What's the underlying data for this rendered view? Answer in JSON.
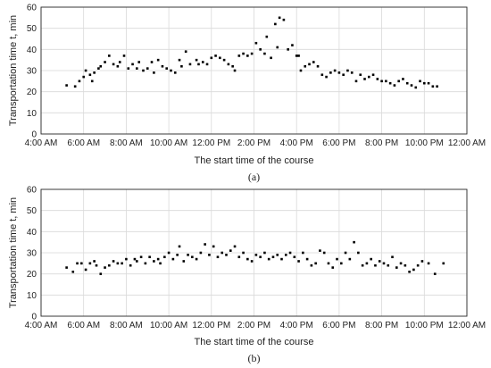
{
  "chart_data": [
    {
      "type": "scatter",
      "caption": "(a)",
      "xlabel": "The start time of the course",
      "ylabel": "Transportation time t, min",
      "xlim": [
        4,
        24
      ],
      "ylim": [
        0,
        60
      ],
      "x_ticks": [
        4,
        6,
        8,
        10,
        12,
        14,
        16,
        18,
        20,
        22,
        24
      ],
      "x_tick_labels": [
        "4:00 AM",
        "6:00 AM",
        "8:00 AM",
        "10:00 AM",
        "12:00 PM",
        "2:00 PM",
        "4:00 PM",
        "6:00 PM",
        "8:00 PM",
        "10:00 PM",
        "12:00 AM"
      ],
      "y_ticks": [
        0,
        10,
        20,
        30,
        40,
        50,
        60
      ],
      "grid": true,
      "x": [
        5.2,
        5.6,
        5.8,
        6.0,
        6.1,
        6.3,
        6.4,
        6.5,
        6.7,
        6.8,
        7.0,
        7.2,
        7.4,
        7.6,
        7.7,
        7.9,
        8.1,
        8.3,
        8.5,
        8.6,
        8.8,
        9.0,
        9.2,
        9.3,
        9.5,
        9.7,
        9.9,
        10.1,
        10.3,
        10.5,
        10.6,
        10.8,
        11.0,
        11.3,
        11.4,
        11.6,
        11.8,
        12.0,
        12.2,
        12.4,
        12.6,
        12.8,
        13.0,
        13.1,
        13.3,
        13.5,
        13.7,
        13.9,
        14.1,
        14.3,
        14.5,
        14.6,
        14.8,
        15.0,
        15.2,
        15.4,
        15.6,
        15.8,
        16.0,
        16.2,
        16.4,
        16.6,
        16.8,
        17.0,
        17.2,
        17.4,
        17.6,
        17.8,
        18.0,
        18.2,
        18.4,
        18.6,
        18.8,
        19.0,
        19.2,
        19.4,
        19.6,
        19.8,
        20.0,
        20.2,
        20.4,
        20.6,
        20.8,
        21.0,
        21.2,
        21.4,
        21.6,
        21.8,
        22.0,
        22.2,
        22.4,
        22.6,
        15.1,
        16.1
      ],
      "y": [
        23,
        22.5,
        25,
        27,
        30,
        28,
        25,
        29,
        31,
        32,
        34,
        37,
        33,
        32,
        34,
        37,
        31,
        33,
        31,
        34,
        30,
        31,
        34,
        29,
        35,
        32,
        31,
        30,
        29,
        35,
        32,
        39,
        33,
        35,
        33,
        34,
        33,
        36,
        37,
        36,
        35,
        33,
        32,
        30,
        37,
        38,
        37,
        38,
        43,
        40,
        38,
        46,
        36,
        52,
        55,
        54,
        40,
        42,
        37,
        30,
        32,
        33,
        34,
        32,
        28,
        27,
        29,
        30,
        29,
        28,
        30,
        29,
        25,
        28,
        26,
        27,
        28,
        26,
        25,
        25,
        24,
        23,
        25,
        26,
        24,
        23,
        22,
        25,
        24,
        24,
        22.5,
        22.5,
        41,
        37
      ]
    },
    {
      "type": "scatter",
      "caption": "(b)",
      "xlabel": "The start time of the course",
      "ylabel": "Transportation time t, min",
      "xlim": [
        4,
        24
      ],
      "ylim": [
        0,
        60
      ],
      "x_ticks": [
        4,
        6,
        8,
        10,
        12,
        14,
        16,
        18,
        20,
        22,
        24
      ],
      "x_tick_labels": [
        "4:00 AM",
        "6:00 AM",
        "8:00 AM",
        "10:00 AM",
        "12:00 PM",
        "2:00 PM",
        "4:00 PM",
        "6:00 PM",
        "8:00 PM",
        "10:00 PM",
        "12:00 AM"
      ],
      "y_ticks": [
        0,
        10,
        20,
        30,
        40,
        50,
        60
      ],
      "grid": true,
      "x": [
        5.2,
        5.5,
        5.7,
        5.9,
        6.1,
        6.3,
        6.5,
        6.6,
        6.8,
        7.0,
        7.2,
        7.4,
        7.6,
        7.8,
        8.0,
        8.2,
        8.4,
        8.5,
        8.7,
        8.9,
        9.1,
        9.3,
        9.5,
        9.6,
        9.8,
        10.0,
        10.2,
        10.4,
        10.5,
        10.7,
        10.9,
        11.1,
        11.3,
        11.5,
        11.7,
        11.9,
        12.1,
        12.3,
        12.5,
        12.7,
        12.9,
        13.1,
        13.3,
        13.5,
        13.7,
        13.9,
        14.1,
        14.3,
        14.5,
        14.7,
        14.9,
        15.1,
        15.3,
        15.5,
        15.7,
        15.9,
        16.1,
        16.3,
        16.5,
        16.7,
        16.9,
        17.1,
        17.3,
        17.5,
        17.7,
        17.9,
        18.1,
        18.3,
        18.5,
        18.7,
        18.9,
        19.1,
        19.3,
        19.5,
        19.7,
        19.9,
        20.1,
        20.3,
        20.5,
        20.7,
        20.9,
        21.1,
        21.3,
        21.5,
        21.7,
        21.9,
        22.2,
        22.5,
        22.9
      ],
      "y": [
        23,
        21,
        25,
        25,
        22,
        25,
        26,
        24,
        20,
        23,
        24,
        26,
        25,
        25,
        27,
        24,
        27,
        26,
        28,
        25,
        28,
        26,
        27,
        25,
        28,
        30,
        27,
        29,
        33,
        26,
        29,
        28,
        27,
        30,
        34,
        29,
        33,
        28,
        30,
        29,
        31,
        33,
        28,
        30,
        27,
        26,
        29,
        28,
        30,
        27,
        28,
        29,
        27,
        29,
        30,
        28,
        26,
        30,
        27,
        24,
        25,
        31,
        30,
        25,
        23,
        27,
        25,
        30,
        27,
        35,
        30,
        24,
        25,
        27,
        24,
        26,
        25,
        24,
        28,
        23,
        25,
        24,
        21,
        22,
        24,
        26,
        25,
        20,
        25
      ]
    }
  ]
}
